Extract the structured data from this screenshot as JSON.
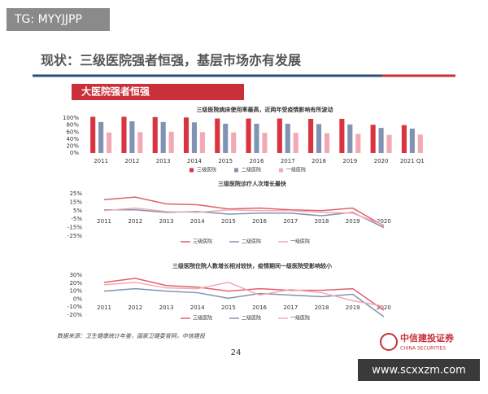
{
  "watermark_top": "TG: MYYJJPP",
  "slide_title": "现状：三级医院强者恒强，基层市场亦有发展",
  "section_header": "大医院强者恒强",
  "source": "数据来源：卫生健康统计年鉴，国家卫健委官网，中信建投",
  "page_number": "24",
  "logo": {
    "name": "中信建投证券",
    "english": "CHINA SECURITIES"
  },
  "watermark_bottom": "www.scxxzm.com",
  "chart_data": [
    {
      "type": "bar",
      "title": "三级医院病床使用率最高，近两年受疫情影响有所波动",
      "categories": [
        "2011",
        "2012",
        "2013",
        "2014",
        "2015",
        "2016",
        "2017",
        "2018",
        "2019",
        "2020",
        "2021 Q1"
      ],
      "series": [
        {
          "name": "三级医院",
          "color": "#d9343f",
          "values": [
            104,
            104,
            103,
            102,
            99,
            99,
            99,
            98,
            98,
            81,
            80
          ]
        },
        {
          "name": "二级医院",
          "color": "#8193b2",
          "values": [
            89,
            91,
            89,
            88,
            84,
            84,
            84,
            83,
            82,
            72,
            70
          ]
        },
        {
          "name": "一级医院",
          "color": "#f2a9b4",
          "values": [
            59,
            60,
            61,
            60,
            59,
            58,
            58,
            57,
            55,
            52,
            53
          ]
        }
      ],
      "ylim": [
        0,
        105
      ],
      "yticks": [
        {
          "value": 0,
          "label": "0%"
        },
        {
          "value": 20,
          "label": "20%"
        },
        {
          "value": 40,
          "label": "40%"
        },
        {
          "value": 60,
          "label": "60%"
        },
        {
          "value": 80,
          "label": "80%"
        },
        {
          "value": 100,
          "label": "100%"
        }
      ]
    },
    {
      "type": "line",
      "title": "三级医院诊疗人次增长最快",
      "categories": [
        "2011",
        "2012",
        "2013",
        "2014",
        "2015",
        "2016",
        "2017",
        "2018",
        "2019",
        "2020"
      ],
      "series": [
        {
          "name": "三级医院",
          "color": "#e0616b",
          "values": [
            18,
            21,
            13,
            12,
            7,
            8,
            6,
            5,
            8,
            -13
          ]
        },
        {
          "name": "二级医院",
          "color": "#8193b2",
          "values": [
            6,
            6,
            3,
            4,
            1,
            2,
            2,
            -1,
            3,
            -15
          ]
        },
        {
          "name": "一级医院",
          "color": "#f2a9b4",
          "values": [
            5,
            8,
            4,
            3,
            6,
            5,
            5,
            3,
            2,
            -12
          ]
        }
      ],
      "ylim": [
        -25,
        25
      ],
      "yticks": [
        {
          "value": 25,
          "label": "25%"
        },
        {
          "value": 15,
          "label": "15%"
        },
        {
          "value": 5,
          "label": "5%"
        },
        {
          "value": -5,
          "label": "-5%"
        },
        {
          "value": -15,
          "label": "-15%"
        },
        {
          "value": -25,
          "label": "-25%"
        }
      ]
    },
    {
      "type": "line",
      "title": "三级医院住院人数增长相对较快，疫情期间一级医院受影响较小",
      "categories": [
        "2011",
        "2012",
        "2013",
        "2014",
        "2015",
        "2016",
        "2017",
        "2018",
        "2019",
        "2020"
      ],
      "series": [
        {
          "name": "三级医院",
          "color": "#e0616b",
          "values": [
            21,
            26,
            17,
            15,
            10,
            13,
            11,
            11,
            13,
            -14
          ]
        },
        {
          "name": "二级医院",
          "color": "#8193b2",
          "values": [
            10,
            13,
            10,
            8,
            1,
            7,
            5,
            3,
            6,
            -22
          ]
        },
        {
          "name": "一级医院",
          "color": "#f2a9b4",
          "values": [
            18,
            21,
            14,
            13,
            21,
            5,
            12,
            8,
            -2,
            -9
          ]
        }
      ],
      "ylim": [
        -20,
        30
      ],
      "yticks": [
        {
          "value": 30,
          "label": "30%"
        },
        {
          "value": 20,
          "label": "20%"
        },
        {
          "value": 10,
          "label": "10%"
        },
        {
          "value": 0,
          "label": "0%"
        },
        {
          "value": -10,
          "label": "-10%"
        },
        {
          "value": -20,
          "label": "-20%"
        }
      ]
    }
  ]
}
